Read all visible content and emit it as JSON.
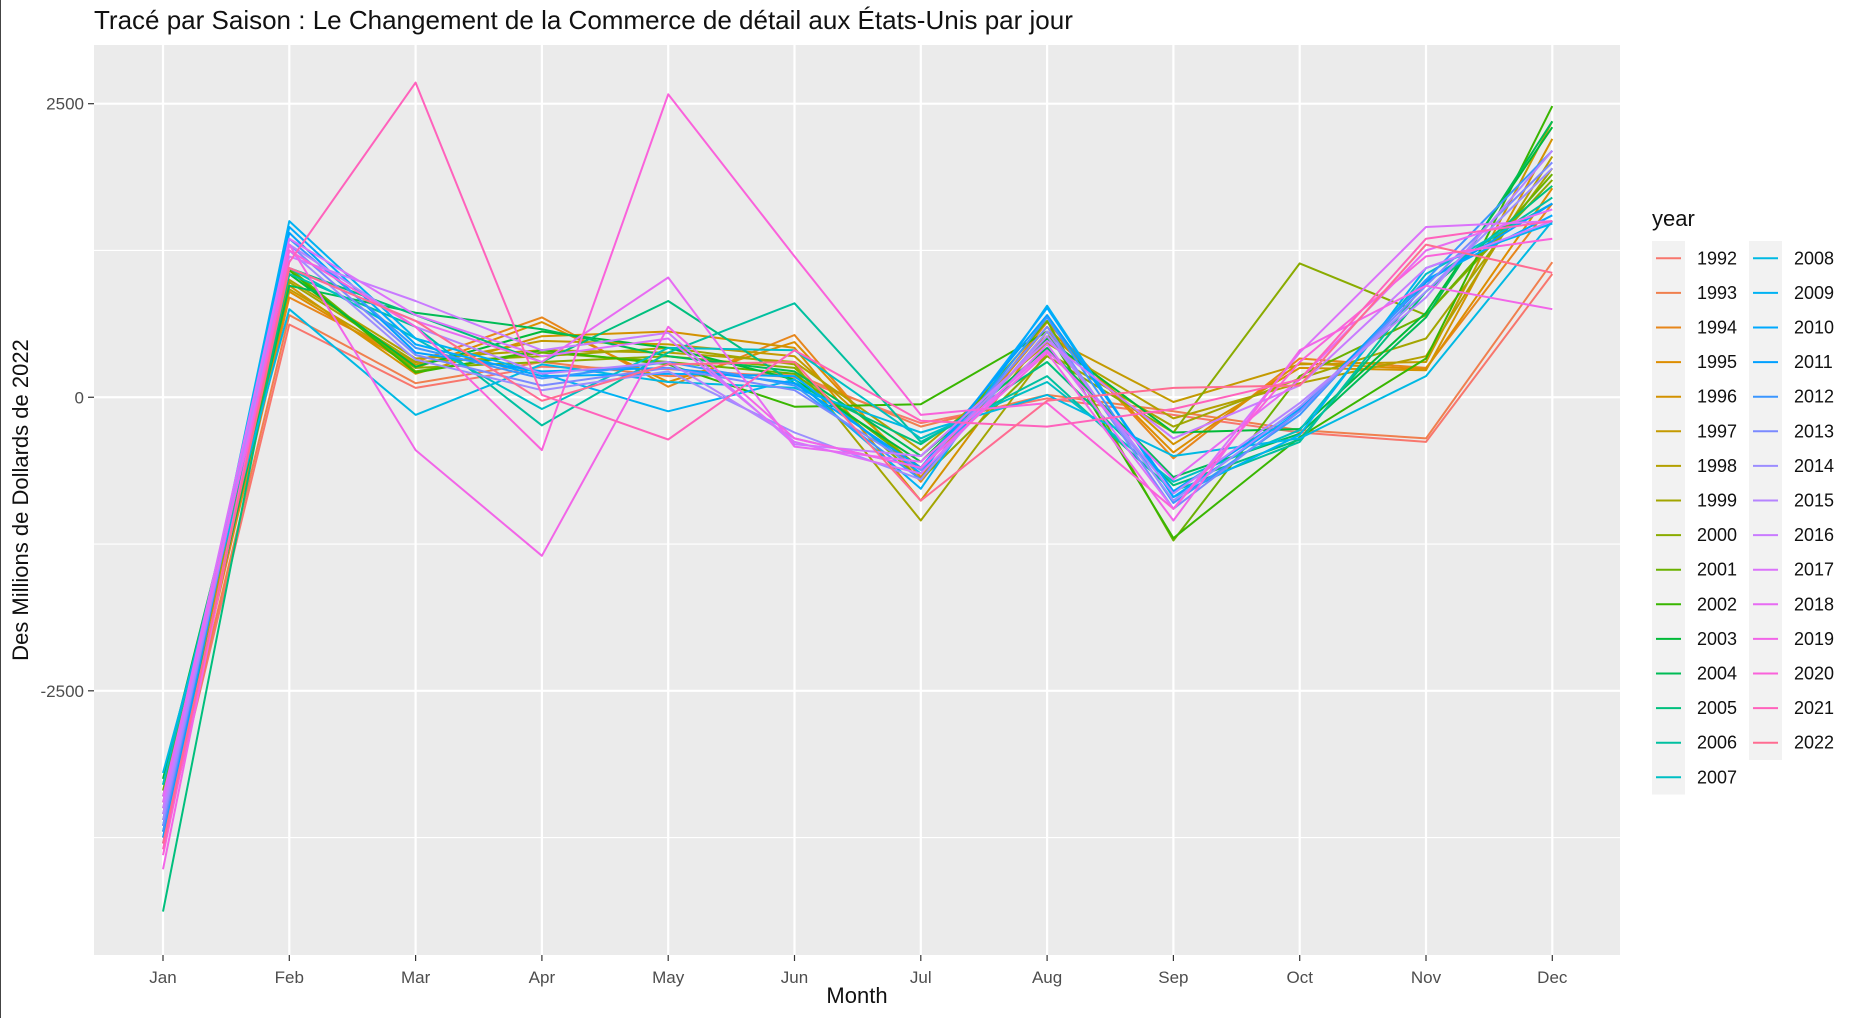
{
  "chart_data": {
    "type": "line",
    "title": "Tracé par Saison :  Le Changement de la Commerce de détail aux États-Unis par jour",
    "xlabel": "Month",
    "ylabel": "Des Millions de Dollards de 2022",
    "categories": [
      "Jan",
      "Feb",
      "Mar",
      "Apr",
      "May",
      "Jun",
      "Jul",
      "Aug",
      "Sep",
      "Oct",
      "Nov",
      "Dec"
    ],
    "ylim": [
      -4750,
      3000
    ],
    "yticks": [
      2500,
      0,
      -2500
    ],
    "ytick_labels": [
      "2500",
      "0",
      "-2500"
    ],
    "grid": true,
    "legend": {
      "title": "year",
      "placement": "right",
      "columns": 2
    },
    "series": [
      {
        "name": "1992",
        "color": "#F8766D",
        "values": [
          -3800,
          620,
          80,
          260,
          240,
          170,
          -220,
          -10,
          -150,
          -300,
          -380,
          1050
        ]
      },
      {
        "name": "1993",
        "color": "#F07F4E",
        "values": [
          -3750,
          700,
          120,
          300,
          180,
          200,
          -250,
          20,
          -120,
          -280,
          -350,
          1150
        ]
      },
      {
        "name": "1994",
        "color": "#E7861B",
        "values": [
          -3700,
          850,
          300,
          680,
          90,
          530,
          -720,
          640,
          -520,
          330,
          250,
          1650
        ]
      },
      {
        "name": "1995",
        "color": "#DD8D00",
        "values": [
          -3650,
          900,
          250,
          640,
          130,
          470,
          -680,
          600,
          -470,
          290,
          240,
          1780
        ]
      },
      {
        "name": "1996",
        "color": "#D39200",
        "values": [
          -3600,
          950,
          200,
          520,
          560,
          420,
          -880,
          560,
          -400,
          250,
          230,
          2200
        ]
      },
      {
        "name": "1997",
        "color": "#C49A00",
        "values": [
          -3550,
          920,
          280,
          480,
          450,
          350,
          -620,
          520,
          -40,
          280,
          300,
          2350
        ]
      },
      {
        "name": "1998",
        "color": "#B3A000",
        "values": [
          -3500,
          1000,
          330,
          400,
          380,
          300,
          -450,
          460,
          -180,
          120,
          350,
          2050
        ]
      },
      {
        "name": "1999",
        "color": "#A3A500",
        "values": [
          -3450,
          980,
          300,
          350,
          420,
          280,
          -1050,
          380,
          -250,
          160,
          500,
          1950
        ]
      },
      {
        "name": "2000",
        "color": "#8AAB00",
        "values": [
          -3400,
          1050,
          250,
          300,
          350,
          250,
          -700,
          350,
          -300,
          1140,
          700,
          1850
        ]
      },
      {
        "name": "2001",
        "color": "#6BB100",
        "values": [
          -3350,
          1100,
          220,
          380,
          300,
          200,
          -600,
          650,
          -1220,
          180,
          700,
          1900
        ]
      },
      {
        "name": "2002",
        "color": "#39B600",
        "values": [
          -3300,
          1080,
          210,
          400,
          280,
          -80,
          -60,
          560,
          -1200,
          -340,
          330,
          2480
        ]
      },
      {
        "name": "2003",
        "color": "#00BA38",
        "values": [
          -3250,
          1050,
          260,
          560,
          420,
          150,
          -550,
          500,
          -300,
          -270,
          720,
          2300
        ]
      },
      {
        "name": "2004",
        "color": "#00BC56",
        "values": [
          -3700,
          950,
          720,
          580,
          350,
          220,
          -500,
          420,
          -680,
          -310,
          680,
          2350
        ]
      },
      {
        "name": "2005",
        "color": "#00BF7D",
        "values": [
          -4380,
          1100,
          700,
          300,
          820,
          120,
          -400,
          300,
          -750,
          -360,
          900,
          1800
        ]
      },
      {
        "name": "2006",
        "color": "#00C0A0",
        "values": [
          -3400,
          1050,
          600,
          -240,
          380,
          800,
          -380,
          180,
          -800,
          -380,
          980,
          1700
        ]
      },
      {
        "name": "2007",
        "color": "#00BFC4",
        "values": [
          -3300,
          1100,
          500,
          -100,
          420,
          400,
          -350,
          130,
          -720,
          -280,
          1050,
          1650
        ]
      },
      {
        "name": "2008",
        "color": "#00B9E3",
        "values": [
          -3200,
          750,
          -150,
          280,
          130,
          80,
          -300,
          20,
          -500,
          -350,
          180,
          1500
        ]
      },
      {
        "name": "2009",
        "color": "#00B2F3",
        "values": [
          -3650,
          1500,
          500,
          200,
          -120,
          150,
          -780,
          780,
          -850,
          -320,
          1100,
          1480
        ]
      },
      {
        "name": "2010",
        "color": "#00A9FF",
        "values": [
          -3800,
          1450,
          450,
          180,
          200,
          180,
          -650,
          760,
          -850,
          -120,
          1000,
          1550
        ]
      },
      {
        "name": "2011",
        "color": "#00A0FF",
        "values": [
          -3750,
          1400,
          380,
          220,
          250,
          120,
          -600,
          700,
          -800,
          -100,
          980,
          1650
        ]
      },
      {
        "name": "2012",
        "color": "#3B96FF",
        "values": [
          -3700,
          1350,
          420,
          160,
          300,
          100,
          -700,
          680,
          -900,
          -150,
          1000,
          2100
        ]
      },
      {
        "name": "2013",
        "color": "#7A89FF",
        "values": [
          -3650,
          1300,
          360,
          100,
          250,
          60,
          -620,
          600,
          -950,
          -120,
          950,
          2000
        ]
      },
      {
        "name": "2014",
        "color": "#9C8DFF",
        "values": [
          -3600,
          1250,
          320,
          60,
          220,
          -300,
          -700,
          560,
          -880,
          -80,
          900,
          1950
        ]
      },
      {
        "name": "2015",
        "color": "#B584FF",
        "values": [
          -3550,
          1300,
          600,
          200,
          300,
          -350,
          -600,
          520,
          -820,
          -50,
          850,
          2100
        ]
      },
      {
        "name": "2016",
        "color": "#C97BFF",
        "values": [
          -3500,
          1200,
          820,
          400,
          550,
          -400,
          -500,
          480,
          -350,
          100,
          1100,
          1500
        ]
      },
      {
        "name": "2017",
        "color": "#DB72FB",
        "values": [
          -3450,
          1350,
          700,
          350,
          500,
          -380,
          -650,
          450,
          -950,
          380,
          1450,
          1500
        ]
      },
      {
        "name": "2018",
        "color": "#E76BF3",
        "values": [
          -3400,
          1100,
          650,
          300,
          1020,
          -420,
          -550,
          400,
          -700,
          150,
          1250,
          1600
        ]
      },
      {
        "name": "2019",
        "color": "#F265E8",
        "values": [
          -4020,
          1300,
          -450,
          -1350,
          600,
          -350,
          -600,
          380,
          -1050,
          400,
          950,
          750
        ]
      },
      {
        "name": "2020",
        "color": "#FA62DB",
        "values": [
          -3900,
          1250,
          600,
          -450,
          2580,
          1200,
          -150,
          -50,
          -950,
          300,
          1200,
          1350
        ]
      },
      {
        "name": "2021",
        "color": "#FF62BC",
        "values": [
          -3850,
          1150,
          2680,
          20,
          -360,
          400,
          -200,
          -250,
          -100,
          150,
          1350,
          1500
        ]
      },
      {
        "name": "2022",
        "color": "#FF6C91",
        "values": [
          -3800,
          1100,
          650,
          -30,
          280,
          300,
          -880,
          -30,
          80,
          100,
          1300,
          1060
        ]
      }
    ]
  }
}
